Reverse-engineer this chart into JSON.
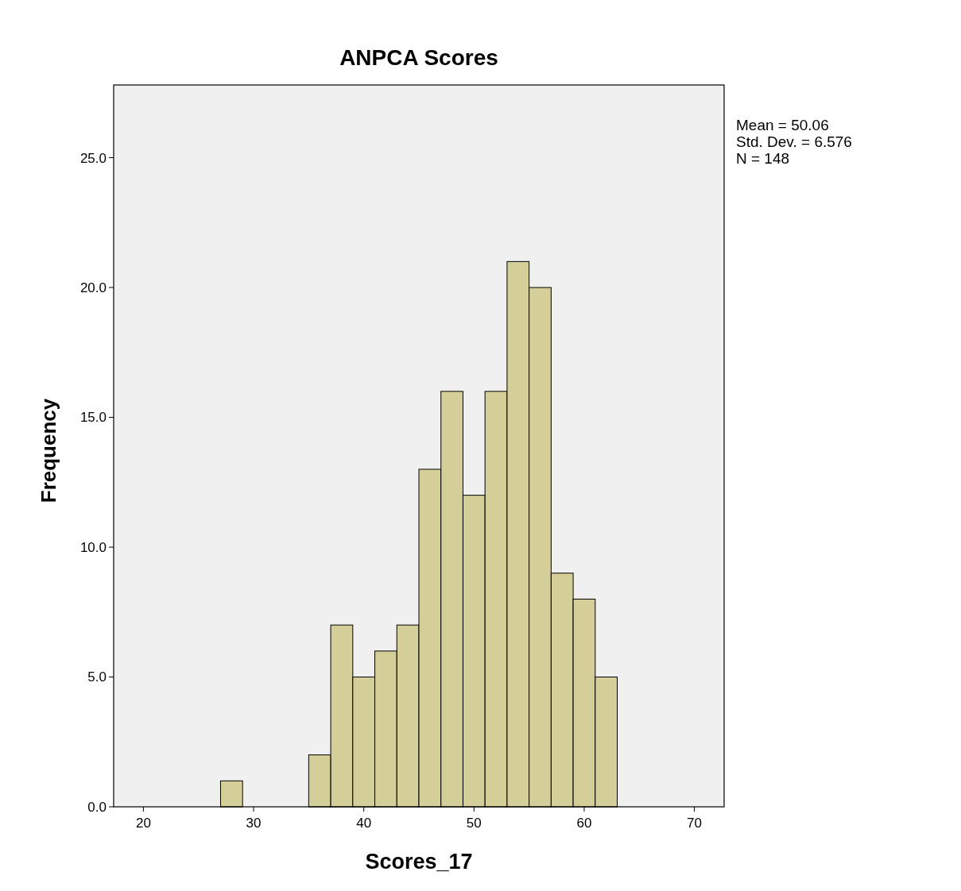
{
  "chart_data": {
    "type": "histogram",
    "title": "ANPCA Scores",
    "xlabel": "Scores_17",
    "ylabel": "Frequency",
    "bins": [
      27,
      29,
      31,
      33,
      35,
      37,
      39,
      41,
      43,
      45,
      47,
      49,
      51,
      53,
      55,
      57,
      59,
      61,
      63
    ],
    "values": [
      1,
      0,
      0,
      0,
      2,
      7,
      5,
      6,
      7,
      13,
      16,
      12,
      16,
      21,
      20,
      9,
      8,
      5
    ],
    "color": "#d4cf98",
    "xlim": [
      17.3,
      72.7
    ],
    "xticks": [
      20,
      30,
      40,
      50,
      60,
      70
    ],
    "ylim": [
      0,
      27.8
    ],
    "yticks": [
      {
        "value": 0,
        "label": "0.0"
      },
      {
        "value": 5,
        "label": "5.0"
      },
      {
        "value": 10,
        "label": "10.0"
      },
      {
        "value": 15,
        "label": "15.0"
      },
      {
        "value": 20,
        "label": "20.0"
      },
      {
        "value": 25,
        "label": "25.0"
      }
    ],
    "annotations": [
      "Mean = 50.06",
      "Std. Dev. = 6.576",
      "N = 148"
    ],
    "grid": false
  }
}
